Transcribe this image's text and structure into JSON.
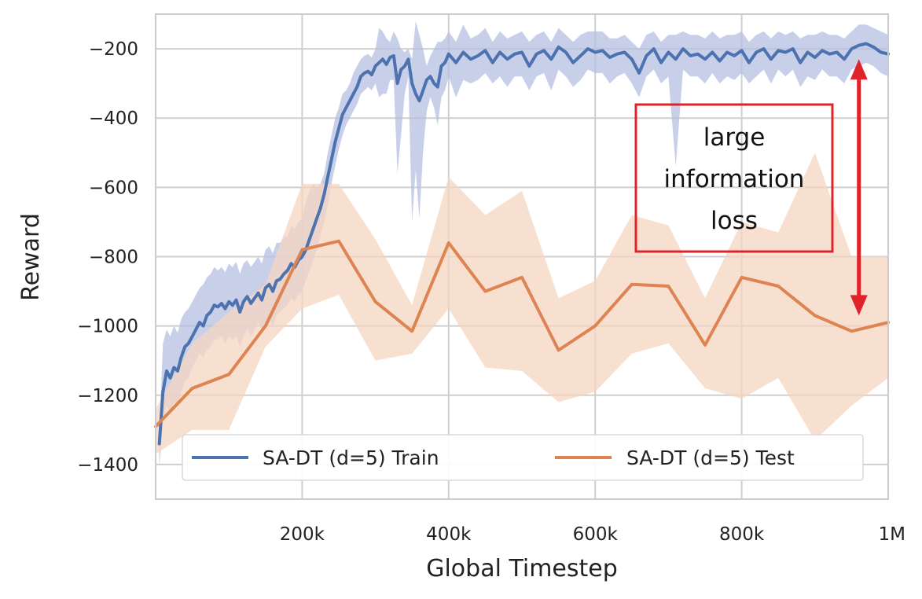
{
  "colors": {
    "train": "#4c72b0",
    "train_band": "#b5bfe2",
    "test": "#dd8452",
    "test_band": "#f6d5c0",
    "annotation": "#e0232b",
    "grid": "#cfcfcf"
  },
  "chart_data": {
    "type": "line",
    "xlabel": "Global Timestep",
    "ylabel": "Reward",
    "xlim": [
      0,
      1000000
    ],
    "ylim": [
      -1500,
      -100
    ],
    "grid": true,
    "legend_position": "lower-center",
    "x_ticks": [
      {
        "value": 200000,
        "label": "200k"
      },
      {
        "value": 400000,
        "label": "400k"
      },
      {
        "value": 600000,
        "label": "600k"
      },
      {
        "value": 800000,
        "label": "800k"
      },
      {
        "value": 1000000,
        "label": "1M"
      }
    ],
    "y_ticks": [
      {
        "value": -200,
        "label": "−200"
      },
      {
        "value": -400,
        "label": "−400"
      },
      {
        "value": -600,
        "label": "−600"
      },
      {
        "value": -800,
        "label": "−800"
      },
      {
        "value": -1000,
        "label": "−1000"
      },
      {
        "value": -1200,
        "label": "−1200"
      },
      {
        "value": -1400,
        "label": "−1400"
      }
    ],
    "series": [
      {
        "name": "SA-DT (d=5) Train",
        "key": "train",
        "x": [
          5000,
          10000,
          15000,
          20000,
          25000,
          30000,
          35000,
          40000,
          45000,
          50000,
          55000,
          60000,
          65000,
          70000,
          75000,
          80000,
          85000,
          90000,
          95000,
          100000,
          105000,
          110000,
          115000,
          120000,
          125000,
          130000,
          135000,
          140000,
          145000,
          150000,
          155000,
          160000,
          165000,
          170000,
          175000,
          180000,
          185000,
          190000,
          195000,
          200000,
          205000,
          210000,
          215000,
          220000,
          225000,
          230000,
          235000,
          240000,
          245000,
          250000,
          255000,
          260000,
          265000,
          270000,
          275000,
          280000,
          285000,
          290000,
          295000,
          300000,
          305000,
          310000,
          315000,
          320000,
          325000,
          330000,
          335000,
          340000,
          345000,
          350000,
          355000,
          360000,
          365000,
          370000,
          375000,
          380000,
          385000,
          390000,
          395000,
          400000,
          410000,
          420000,
          430000,
          440000,
          450000,
          460000,
          470000,
          480000,
          490000,
          500000,
          510000,
          520000,
          530000,
          540000,
          550000,
          560000,
          570000,
          580000,
          590000,
          600000,
          610000,
          620000,
          630000,
          640000,
          650000,
          660000,
          670000,
          680000,
          690000,
          700000,
          710000,
          720000,
          730000,
          740000,
          750000,
          760000,
          770000,
          780000,
          790000,
          800000,
          810000,
          820000,
          830000,
          840000,
          850000,
          860000,
          870000,
          880000,
          890000,
          900000,
          910000,
          920000,
          930000,
          940000,
          950000,
          960000,
          970000,
          980000,
          990000,
          1000000
        ],
        "values": [
          -1340,
          -1190,
          -1130,
          -1150,
          -1120,
          -1130,
          -1090,
          -1060,
          -1050,
          -1030,
          -1010,
          -990,
          -1000,
          -970,
          -960,
          -940,
          -945,
          -935,
          -950,
          -930,
          -940,
          -925,
          -960,
          -930,
          -915,
          -935,
          -920,
          -905,
          -925,
          -890,
          -880,
          -900,
          -870,
          -865,
          -850,
          -840,
          -820,
          -830,
          -810,
          -800,
          -780,
          -750,
          -720,
          -690,
          -660,
          -620,
          -570,
          -520,
          -470,
          -430,
          -390,
          -370,
          -350,
          -330,
          -310,
          -280,
          -270,
          -265,
          -275,
          -250,
          -240,
          -230,
          -245,
          -225,
          -220,
          -300,
          -260,
          -250,
          -230,
          -300,
          -330,
          -350,
          -320,
          -290,
          -280,
          -300,
          -310,
          -250,
          -240,
          -215,
          -240,
          -210,
          -230,
          -220,
          -205,
          -240,
          -210,
          -230,
          -215,
          -210,
          -250,
          -215,
          -205,
          -230,
          -195,
          -210,
          -240,
          -220,
          -200,
          -210,
          -205,
          -225,
          -215,
          -210,
          -230,
          -270,
          -220,
          -200,
          -240,
          -210,
          -230,
          -200,
          -220,
          -215,
          -230,
          -210,
          -235,
          -210,
          -220,
          -205,
          -240,
          -210,
          -200,
          -230,
          -205,
          -210,
          -200,
          -240,
          -210,
          -225,
          -205,
          -215,
          -210,
          -230,
          -200,
          -190,
          -185,
          -195,
          -210,
          -215
        ],
        "band_upper": [
          -1300,
          -1050,
          -1010,
          -1030,
          -1000,
          -1020,
          -980,
          -960,
          -950,
          -930,
          -910,
          -890,
          -880,
          -860,
          -850,
          -830,
          -840,
          -830,
          -845,
          -820,
          -830,
          -815,
          -850,
          -820,
          -810,
          -830,
          -815,
          -800,
          -820,
          -780,
          -770,
          -790,
          -760,
          -760,
          -745,
          -740,
          -710,
          -720,
          -700,
          -690,
          -640,
          -610,
          -590,
          -600,
          -590,
          -560,
          -500,
          -450,
          -400,
          -370,
          -330,
          -320,
          -300,
          -270,
          -250,
          -230,
          -220,
          -215,
          -225,
          -200,
          -140,
          -150,
          -170,
          -180,
          -150,
          -170,
          -200,
          -210,
          -200,
          -230,
          -120,
          -160,
          -200,
          -250,
          -220,
          -200,
          -180,
          -180,
          -170,
          -150,
          -180,
          -130,
          -170,
          -160,
          -140,
          -180,
          -150,
          -170,
          -160,
          -150,
          -180,
          -160,
          -150,
          -180,
          -140,
          -160,
          -180,
          -160,
          -150,
          -150,
          -150,
          -170,
          -170,
          -160,
          -180,
          -200,
          -160,
          -150,
          -180,
          -160,
          -160,
          -150,
          -160,
          -160,
          -170,
          -150,
          -170,
          -160,
          -160,
          -150,
          -180,
          -160,
          -150,
          -170,
          -150,
          -160,
          -150,
          -170,
          -160,
          -160,
          -150,
          -160,
          -160,
          -170,
          -150,
          -130,
          -130,
          -140,
          -150,
          -160
        ],
        "band_lower": [
          -1410,
          -1280,
          -1230,
          -1250,
          -1220,
          -1230,
          -1190,
          -1160,
          -1150,
          -1120,
          -1100,
          -1080,
          -1090,
          -1070,
          -1060,
          -1040,
          -1040,
          -1030,
          -1050,
          -1030,
          -1040,
          -1030,
          -1060,
          -1030,
          -1010,
          -1030,
          -1010,
          -990,
          -1010,
          -990,
          -980,
          -1000,
          -970,
          -960,
          -950,
          -940,
          -920,
          -930,
          -910,
          -900,
          -870,
          -840,
          -810,
          -780,
          -740,
          -700,
          -650,
          -590,
          -540,
          -490,
          -450,
          -420,
          -400,
          -380,
          -360,
          -330,
          -320,
          -310,
          -320,
          -300,
          -340,
          -330,
          -330,
          -290,
          -290,
          -560,
          -450,
          -330,
          -280,
          -700,
          -550,
          -690,
          -500,
          -380,
          -340,
          -370,
          -420,
          -340,
          -320,
          -280,
          -340,
          -290,
          -300,
          -290,
          -270,
          -300,
          -280,
          -310,
          -280,
          -280,
          -320,
          -280,
          -270,
          -320,
          -260,
          -280,
          -310,
          -290,
          -260,
          -270,
          -270,
          -300,
          -280,
          -270,
          -300,
          -340,
          -280,
          -260,
          -300,
          -280,
          -540,
          -260,
          -280,
          -280,
          -300,
          -270,
          -300,
          -280,
          -290,
          -270,
          -300,
          -280,
          -260,
          -300,
          -260,
          -280,
          -260,
          -310,
          -280,
          -290,
          -260,
          -280,
          -280,
          -300,
          -260,
          -250,
          -240,
          -250,
          -270,
          -280
        ]
      },
      {
        "name": "SA-DT (d=5) Test",
        "key": "test",
        "x": [
          0,
          50000,
          100000,
          150000,
          200000,
          250000,
          300000,
          350000,
          400000,
          450000,
          500000,
          550000,
          600000,
          650000,
          700000,
          750000,
          800000,
          850000,
          900000,
          950000,
          1000000
        ],
        "values": [
          -1290,
          -1180,
          -1140,
          -1000,
          -780,
          -755,
          -930,
          -1015,
          -760,
          -900,
          -860,
          -1070,
          -1000,
          -880,
          -885,
          -1055,
          -860,
          -885,
          -970,
          -1015,
          -990
        ],
        "band_upper": [
          -1240,
          -1050,
          -960,
          -880,
          -590,
          -590,
          -750,
          -940,
          -570,
          -680,
          -610,
          -920,
          -870,
          -680,
          -710,
          -920,
          -700,
          -730,
          -500,
          -800,
          -800
        ],
        "band_lower": [
          -1370,
          -1300,
          -1300,
          -1060,
          -950,
          -910,
          -1100,
          -1080,
          -950,
          -1120,
          -1130,
          -1220,
          -1190,
          -1080,
          -1050,
          -1180,
          -1210,
          -1150,
          -1330,
          -1230,
          -1150
        ]
      }
    ],
    "annotation": {
      "lines": [
        "large",
        "information",
        "loss"
      ],
      "arrow": {
        "x": 960000,
        "from": -230,
        "to": -970
      }
    }
  }
}
